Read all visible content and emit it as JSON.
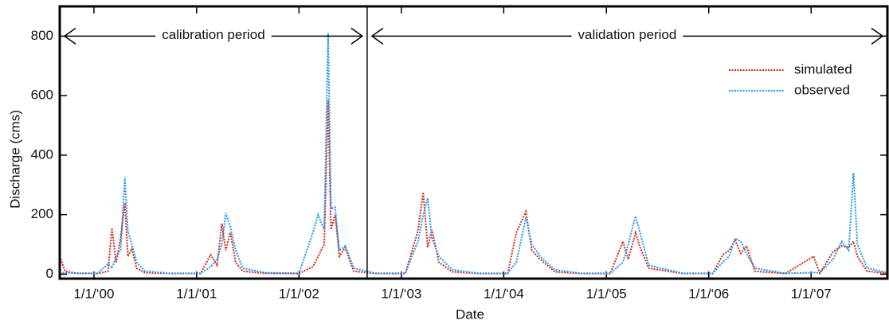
{
  "chart_data": {
    "type": "line",
    "x_label": "Date",
    "y_label": "Discharge (cms)",
    "annotations": [
      {
        "text": "calibration period",
        "from": "1999-09-01",
        "to": "2002-09-01"
      },
      {
        "text": "validation period",
        "from": "2002-09-01",
        "to": "2007-09-30"
      }
    ],
    "divider": "2002-09-01",
    "xlim": [
      "1999-09-01",
      "2007-09-30"
    ],
    "xticks": [
      {
        "value": "2000-01-01",
        "label": "1/1/‘00"
      },
      {
        "value": "2001-01-01",
        "label": "1/1/‘01"
      },
      {
        "value": "2002-01-01",
        "label": "1/1/‘02"
      },
      {
        "value": "2003-01-01",
        "label": "1/1/‘03"
      },
      {
        "value": "2004-01-01",
        "label": "1/1/‘04"
      },
      {
        "value": "2005-01-01",
        "label": "1/1/‘05"
      },
      {
        "value": "2006-01-01",
        "label": "1/1/‘06"
      },
      {
        "value": "2007-01-01",
        "label": "1/1/‘07"
      }
    ],
    "ylim": [
      -15,
      900
    ],
    "yticks": [
      0,
      200,
      400,
      600,
      800
    ],
    "legend": "top-right",
    "x": [
      "1999-09-01",
      "1999-09-20",
      "1999-11-01",
      "2000-01-15",
      "2000-02-20",
      "2000-03-05",
      "2000-03-20",
      "2000-04-05",
      "2000-04-20",
      "2000-05-01",
      "2000-05-15",
      "2000-06-01",
      "2000-07-01",
      "2000-10-01",
      "2001-01-15",
      "2001-02-20",
      "2001-03-15",
      "2001-04-01",
      "2001-04-15",
      "2001-05-01",
      "2001-05-20",
      "2001-06-15",
      "2001-09-01",
      "2002-01-01",
      "2002-02-20",
      "2002-03-10",
      "2002-04-01",
      "2002-04-15",
      "2002-04-25",
      "2002-05-10",
      "2002-05-25",
      "2002-06-15",
      "2002-07-15",
      "2002-10-01",
      "2003-01-15",
      "2003-03-01",
      "2003-03-20",
      "2003-04-05",
      "2003-04-20",
      "2003-05-15",
      "2003-07-01",
      "2003-10-01",
      "2004-01-15",
      "2004-02-15",
      "2004-03-20",
      "2004-04-10",
      "2004-05-10",
      "2004-07-01",
      "2004-10-01",
      "2005-01-15",
      "2005-03-01",
      "2005-03-20",
      "2005-04-15",
      "2005-05-01",
      "2005-06-01",
      "2005-10-01",
      "2006-01-15",
      "2006-02-20",
      "2006-03-15",
      "2006-04-05",
      "2006-04-25",
      "2006-05-15",
      "2006-06-15",
      "2006-10-01",
      "2007-01-10",
      "2007-02-01",
      "2007-03-20",
      "2007-04-20",
      "2007-05-15",
      "2007-06-01",
      "2007-06-15",
      "2007-07-20",
      "2007-09-30"
    ],
    "series": [
      {
        "name": "simulated",
        "color": "#d42a1a",
        "values": [
          60,
          10,
          3,
          2,
          10,
          155,
          40,
          120,
          240,
          60,
          85,
          20,
          5,
          2,
          2,
          65,
          30,
          170,
          80,
          140,
          40,
          10,
          3,
          2,
          25,
          60,
          100,
          585,
          150,
          200,
          60,
          90,
          10,
          2,
          2,
          145,
          275,
          90,
          150,
          40,
          8,
          2,
          2,
          140,
          210,
          80,
          50,
          8,
          2,
          2,
          110,
          50,
          140,
          90,
          20,
          2,
          2,
          65,
          80,
          115,
          70,
          95,
          10,
          2,
          60,
          3,
          75,
          95,
          90,
          110,
          60,
          10,
          3
        ]
      },
      {
        "name": "observed",
        "color": "#2196f3",
        "values": [
          5,
          5,
          3,
          3,
          35,
          20,
          60,
          80,
          325,
          145,
          100,
          40,
          10,
          3,
          3,
          25,
          50,
          100,
          205,
          160,
          80,
          20,
          5,
          3,
          140,
          200,
          150,
          810,
          220,
          225,
          80,
          95,
          20,
          3,
          3,
          110,
          200,
          255,
          120,
          60,
          15,
          3,
          3,
          40,
          190,
          100,
          60,
          15,
          3,
          3,
          40,
          100,
          195,
          140,
          30,
          3,
          3,
          40,
          60,
          120,
          110,
          70,
          20,
          3,
          5,
          5,
          50,
          110,
          80,
          340,
          100,
          20,
          5
        ]
      }
    ]
  }
}
